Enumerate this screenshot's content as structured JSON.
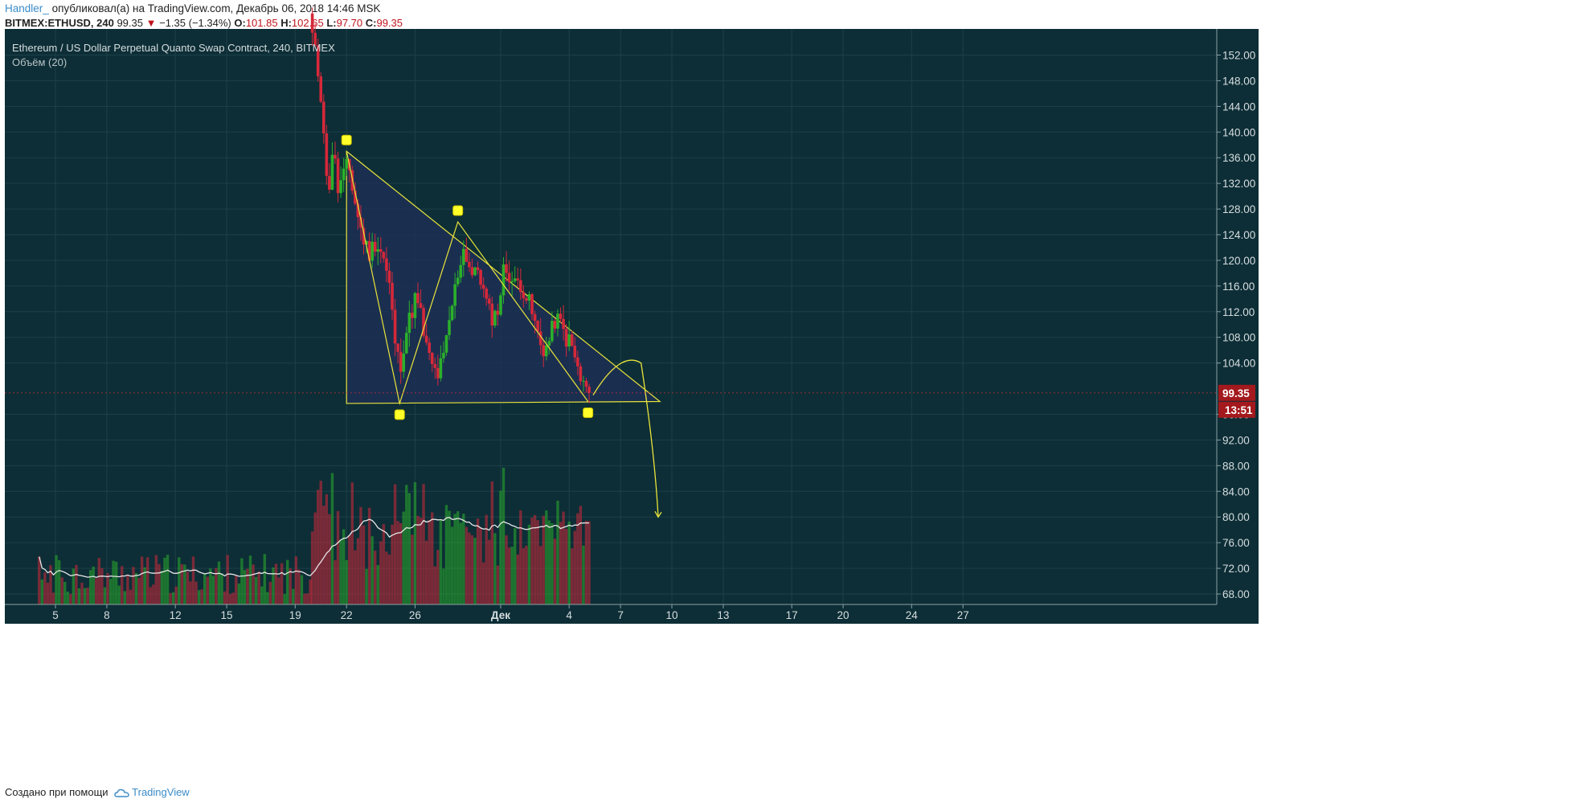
{
  "header": {
    "author": "Handler_",
    "published_text": "опубликовал(а) на TradingView.com, Декабрь 06, 2018 14:46 MSK",
    "ticker": "BITMEX:ETHUSD, 240",
    "last": "99.35",
    "change": "−1.35 (−1.34%)",
    "o_label": "O:",
    "o_value": "101.85",
    "h_label": "H:",
    "h_value": "102.65",
    "l_label": "L:",
    "l_value": "97.70",
    "c_label": "C:",
    "c_value": "99.35"
  },
  "legend": {
    "title": "Ethereum / US Dollar Perpetual Quanto Swap Contract, 240, BITMEX",
    "volume": "Объём (20)"
  },
  "price_axis": {
    "ticks": [
      "152.00",
      "148.00",
      "144.00",
      "140.00",
      "136.00",
      "132.00",
      "128.00",
      "124.00",
      "120.00",
      "116.00",
      "112.00",
      "108.00",
      "104.00",
      "96.00",
      "92.00",
      "88.00",
      "84.00",
      "80.00",
      "76.00",
      "72.00",
      "68.00"
    ],
    "last_price_label": "99.35",
    "countdown_label": "13:51"
  },
  "time_axis": {
    "ticks": [
      "5",
      "8",
      "12",
      "15",
      "19",
      "22",
      "26",
      "Дек",
      "4",
      "7",
      "10",
      "13",
      "17",
      "20",
      "24",
      "27"
    ]
  },
  "footer": {
    "made_with": "Создано при помощи",
    "brand": "TradingView"
  },
  "colors": {
    "background": "#0d2e36",
    "grid": "#1d4048",
    "up": "#2bb02b",
    "down": "#d6283a",
    "drawing": "#e9e43a",
    "triangle_fill": "#1d2f55",
    "ma_line": "#e6e6e6",
    "price_badge": "#a3191d"
  },
  "chart_data": {
    "type": "candlestick",
    "symbol": "BITMEX:ETHUSD",
    "timeframe": "240",
    "x_unit": "day (Nov 2018 - Dec 2018)",
    "ylim": [
      66,
      154
    ],
    "last_price": 99.35,
    "ohlc_anchors": [
      {
        "day": 20.0,
        "close": 155
      },
      {
        "day": 20.3,
        "close": 150
      },
      {
        "day": 20.6,
        "close": 144
      },
      {
        "day": 20.9,
        "close": 129
      },
      {
        "day": 21.2,
        "close": 138
      },
      {
        "day": 21.5,
        "close": 131
      },
      {
        "day": 21.8,
        "close": 133
      },
      {
        "day": 22.1,
        "close": 135
      },
      {
        "day": 22.5,
        "close": 129
      },
      {
        "day": 22.9,
        "close": 124
      },
      {
        "day": 23.3,
        "close": 121
      },
      {
        "day": 23.7,
        "close": 123
      },
      {
        "day": 24.1,
        "close": 121
      },
      {
        "day": 24.5,
        "close": 116
      },
      {
        "day": 24.8,
        "close": 108
      },
      {
        "day": 25.1,
        "close": 103
      },
      {
        "day": 25.4,
        "close": 108
      },
      {
        "day": 25.7,
        "close": 111
      },
      {
        "day": 26.0,
        "close": 114
      },
      {
        "day": 26.3,
        "close": 112
      },
      {
        "day": 26.6,
        "close": 107
      },
      {
        "day": 26.9,
        "close": 104
      },
      {
        "day": 27.3,
        "close": 102
      },
      {
        "day": 27.7,
        "close": 105
      },
      {
        "day": 28.1,
        "close": 112
      },
      {
        "day": 28.5,
        "close": 118
      },
      {
        "day": 28.8,
        "close": 122
      },
      {
        "day": 29.1,
        "close": 120
      },
      {
        "day": 29.4,
        "close": 117
      },
      {
        "day": 29.7,
        "close": 119
      },
      {
        "day": 30.0,
        "close": 115
      },
      {
        "day": 30.3,
        "close": 112
      },
      {
        "day": 30.6,
        "close": 111
      },
      {
        "day": 30.9,
        "close": 113
      },
      {
        "day": 31.2,
        "close": 119
      },
      {
        "day": 31.5,
        "close": 118
      },
      {
        "day": 31.8,
        "close": 116
      },
      {
        "day": 32.1,
        "close": 117
      },
      {
        "day": 32.4,
        "close": 115
      },
      {
        "day": 32.7,
        "close": 113
      },
      {
        "day": 33.0,
        "close": 110
      },
      {
        "day": 33.3,
        "close": 107
      },
      {
        "day": 33.6,
        "close": 106
      },
      {
        "day": 33.9,
        "close": 108
      },
      {
        "day": 34.2,
        "close": 111
      },
      {
        "day": 34.5,
        "close": 110
      },
      {
        "day": 34.8,
        "close": 108
      },
      {
        "day": 35.1,
        "close": 107
      },
      {
        "day": 35.4,
        "close": 104
      },
      {
        "day": 35.7,
        "close": 101
      },
      {
        "day": 36.0,
        "close": 100
      },
      {
        "day": 36.2,
        "close": 99.35
      }
    ],
    "volume_ma_period": 20,
    "drawings": {
      "descending_triangle": [
        {
          "day": 22.0,
          "price": 137.0
        },
        {
          "day": 40.3,
          "price": 98.0
        },
        {
          "day": 22.0,
          "price": 97.7
        }
      ],
      "pattern_points": [
        {
          "day": 22.0,
          "price": 137.0
        },
        {
          "day": 25.1,
          "price": 97.7
        },
        {
          "day": 28.5,
          "price": 126.0
        },
        {
          "day": 36.1,
          "price": 98.0
        }
      ],
      "projection_curve": [
        {
          "day": 36.4,
          "price": 99.0
        },
        {
          "day": 38.0,
          "price": 106.0
        },
        {
          "day": 39.2,
          "price": 104.0
        },
        {
          "day": 40.0,
          "price": 90.0
        },
        {
          "day": 40.2,
          "price": 80.0
        }
      ]
    }
  }
}
